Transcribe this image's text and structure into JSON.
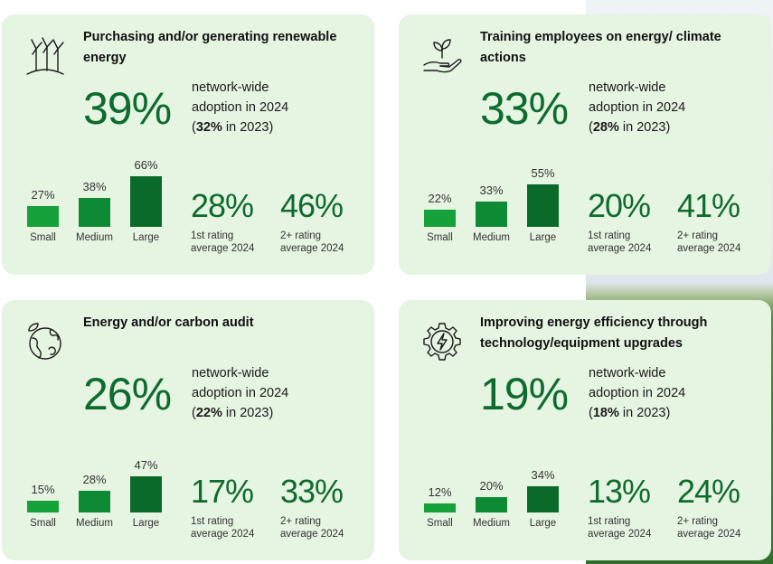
{
  "colors": {
    "small": "#16a13b",
    "medium": "#0f8a34",
    "large": "#0a6a2a",
    "accent": "#0e6b2f",
    "card": "#e6f4e2"
  },
  "chart_data": [
    {
      "type": "bar",
      "icon": "wind-turbine-icon",
      "title": "Purchasing and/or generating renewable energy",
      "headline": "39%",
      "adoption_line1": "network-wide",
      "adoption_line2": "adoption in 2024",
      "prev_open": "(",
      "prev_value": "32%",
      "prev_close": " in 2023)",
      "categories": [
        "Small",
        "Medium",
        "Large"
      ],
      "values": [
        27,
        38,
        66
      ],
      "value_labels": [
        "27%",
        "38%",
        "66%"
      ],
      "ratings": [
        {
          "value": "28%",
          "label": "1st rating\naverage 2024"
        },
        {
          "value": "46%",
          "label": "2+ rating\naverage 2024"
        }
      ]
    },
    {
      "type": "bar",
      "icon": "hand-plant-icon",
      "title": "Training employees on energy/ climate actions",
      "headline": "33%",
      "adoption_line1": "network-wide",
      "adoption_line2": "adoption in 2024",
      "prev_open": "(",
      "prev_value": "28%",
      "prev_close": " in 2023)",
      "categories": [
        "Small",
        "Medium",
        "Large"
      ],
      "values": [
        22,
        33,
        55
      ],
      "value_labels": [
        "22%",
        "33%",
        "55%"
      ],
      "ratings": [
        {
          "value": "20%",
          "label": "1st rating\naverage 2024"
        },
        {
          "value": "41%",
          "label": "2+ rating\naverage 2024"
        }
      ]
    },
    {
      "type": "bar",
      "icon": "globe-leaf-icon",
      "title": "Energy and/or carbon audit",
      "headline": "26%",
      "adoption_line1": "network-wide",
      "adoption_line2": "adoption in 2024",
      "prev_open": "(",
      "prev_value": "22%",
      "prev_close": " in 2023)",
      "categories": [
        "Small",
        "Medium",
        "Large"
      ],
      "values": [
        15,
        28,
        47
      ],
      "value_labels": [
        "15%",
        "28%",
        "47%"
      ],
      "ratings": [
        {
          "value": "17%",
          "label": "1st rating\naverage 2024"
        },
        {
          "value": "33%",
          "label": "2+ rating\naverage 2024"
        }
      ]
    },
    {
      "type": "bar",
      "icon": "gear-bolt-icon",
      "title": "Improving energy efficiency through technology/equipment upgrades",
      "headline": "19%",
      "adoption_line1": "network-wide",
      "adoption_line2": "adoption in 2024",
      "prev_open": "(",
      "prev_value": "18%",
      "prev_close": " in 2023)",
      "categories": [
        "Small",
        "Medium",
        "Large"
      ],
      "values": [
        12,
        20,
        34
      ],
      "value_labels": [
        "12%",
        "20%",
        "34%"
      ],
      "ratings": [
        {
          "value": "13%",
          "label": "1st rating\naverage 2024"
        },
        {
          "value": "24%",
          "label": "2+ rating\naverage 2024"
        }
      ]
    }
  ]
}
